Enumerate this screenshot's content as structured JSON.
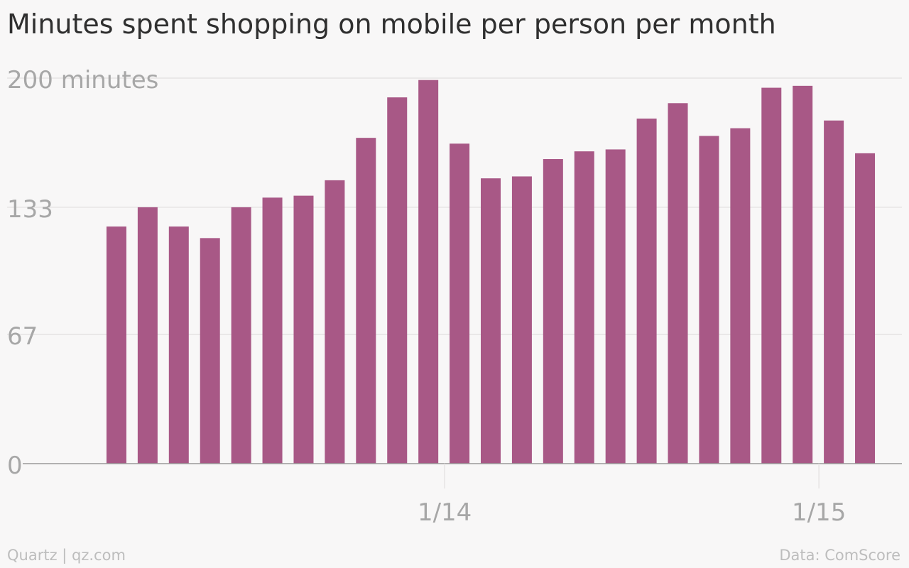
{
  "title": "Minutes spent shopping on mobile per person per month",
  "footer": {
    "source_left": "Quartz | qz.com",
    "source_right": "Data: ComScore"
  },
  "colors": {
    "bar": "#a85886",
    "grid": "#e6e4e4",
    "axis": "#9a9a9a",
    "tick_text": "#a7a7a7",
    "background": "#f8f7f7"
  },
  "chart_data": {
    "type": "bar",
    "title": "Minutes spent shopping on mobile per person per month",
    "xlabel": "",
    "ylabel": "",
    "ylim": [
      0,
      200
    ],
    "y_ticks": [
      {
        "value": 200,
        "label": "200 minutes"
      },
      {
        "value": 133,
        "label": "133"
      },
      {
        "value": 67,
        "label": "67"
      },
      {
        "value": 0,
        "label": "0"
      }
    ],
    "x_ticks": [
      {
        "after_index": 10,
        "label": "1/14"
      },
      {
        "after_index": 22,
        "label": "1/15"
      }
    ],
    "grid": true,
    "values": [
      123,
      133,
      123,
      117,
      133,
      138,
      139,
      147,
      169,
      190,
      199,
      166,
      148,
      149,
      158,
      162,
      163,
      179,
      187,
      170,
      174,
      195,
      196,
      178,
      161
    ]
  }
}
